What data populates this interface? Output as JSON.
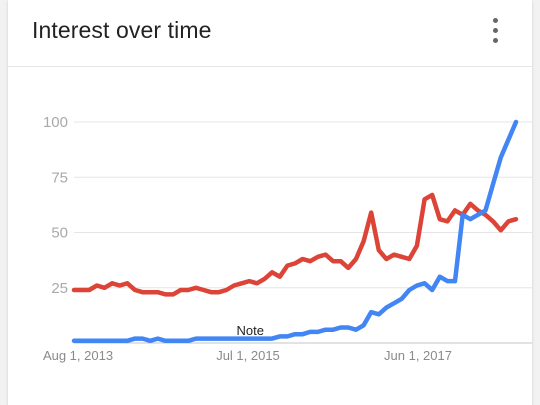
{
  "header": {
    "title": "Interest over time",
    "menu_icon": "more-vert-icon"
  },
  "colors": {
    "series_red": "#db4437",
    "series_blue": "#4285f4",
    "grid": "#e6e6e6",
    "axis": "#c6c6c6"
  },
  "chart_data": {
    "type": "line",
    "title": "",
    "xlabel": "",
    "ylabel": "",
    "ylim": [
      0,
      100
    ],
    "yticks": [
      25,
      50,
      75,
      100
    ],
    "xticks": [
      "Aug 1, 2013",
      "Jul 1, 2015",
      "Jun 1, 2017"
    ],
    "grid": true,
    "annotation": {
      "text": "Note",
      "x_index": 23
    },
    "series": [
      {
        "color": "#db4437",
        "values": [
          24,
          24,
          24,
          26,
          25,
          27,
          26,
          27,
          24,
          23,
          23,
          23,
          22,
          22,
          24,
          24,
          25,
          24,
          23,
          23,
          24,
          26,
          27,
          28,
          27,
          29,
          32,
          30,
          35,
          36,
          38,
          37,
          39,
          40,
          37,
          37,
          34,
          38,
          46,
          59,
          42,
          38,
          40,
          39,
          38,
          44,
          65,
          67,
          56,
          55,
          60,
          58,
          63,
          60,
          58,
          55,
          51,
          55,
          56
        ]
      },
      {
        "color": "#4285f4",
        "values": [
          1,
          1,
          1,
          1,
          1,
          1,
          1,
          1,
          2,
          2,
          1,
          2,
          1,
          1,
          1,
          1,
          2,
          2,
          2,
          2,
          2,
          2,
          2,
          2,
          2,
          2,
          2,
          3,
          3,
          4,
          4,
          5,
          5,
          6,
          6,
          7,
          7,
          6,
          8,
          14,
          13,
          16,
          18,
          20,
          24,
          26,
          27,
          24,
          30,
          28,
          28,
          58,
          56,
          58,
          60,
          72,
          84,
          92,
          100
        ]
      }
    ]
  }
}
